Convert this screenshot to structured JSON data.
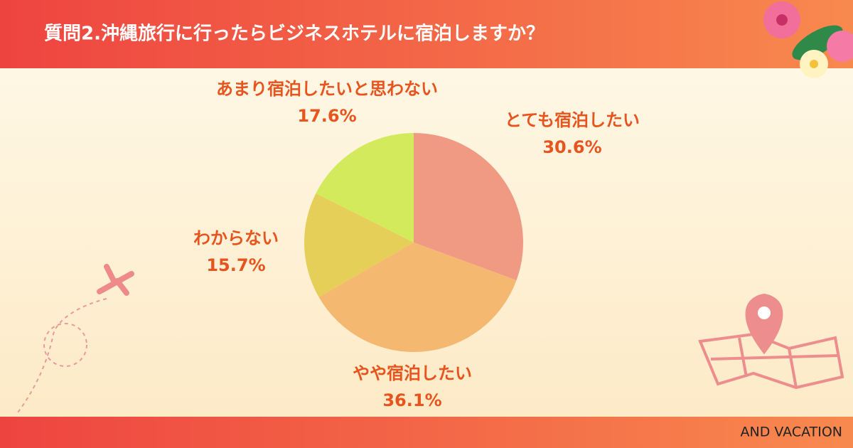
{
  "chart_data": {
    "type": "pie",
    "title": "質問2.沖縄旅行に行ったらビジネスホテルに宿泊しますか？",
    "categories": [
      "とても宿泊したい",
      "やや宿泊したい",
      "わからない",
      "あまり宿泊したいと思わない"
    ],
    "values": [
      30.6,
      36.1,
      15.7,
      17.6
    ],
    "value_labels": [
      "30.6%",
      "36.1%",
      "15.7%",
      "17.6%"
    ],
    "colors": [
      "#f09a84",
      "#f5b870",
      "#e6cf58",
      "#d3ea5c"
    ],
    "footer": "AND VACATION"
  }
}
